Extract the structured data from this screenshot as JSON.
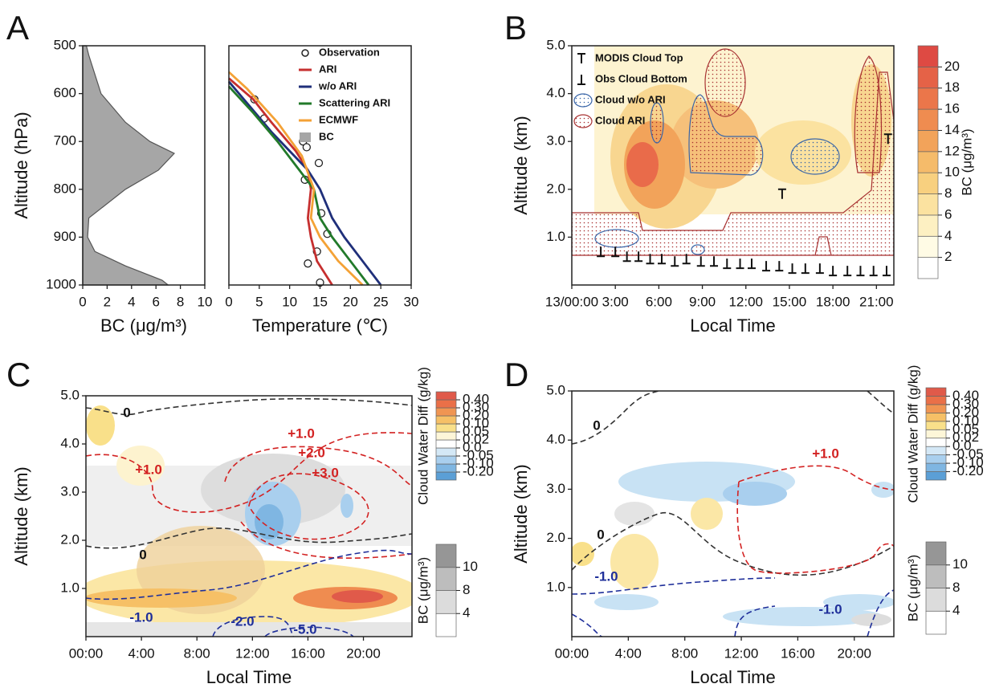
{
  "chart_data": [
    {
      "type": "area",
      "title": "A",
      "xlabel": "BC  (μg/m³)",
      "ylabel": "Altitude (hPa)",
      "xlim": [
        0,
        10
      ],
      "xticks": [
        0,
        2,
        4,
        6,
        8,
        10
      ],
      "ylim": [
        1000,
        500
      ],
      "yticks": [
        500,
        600,
        700,
        800,
        900,
        1000
      ],
      "series": [
        {
          "name": "BC",
          "color": "#a6a6a6",
          "y": [
            500,
            520,
            600,
            660,
            700,
            725,
            760,
            800,
            860,
            900,
            930,
            960,
            990,
            1000
          ],
          "values": [
            0.3,
            0.5,
            1.5,
            3.5,
            5.5,
            7.5,
            6.2,
            3.5,
            0.5,
            0.4,
            1,
            3.5,
            6.5,
            7
          ]
        }
      ]
    },
    {
      "type": "line",
      "xlabel": "Temperature (℃)",
      "xlim": [
        0,
        30
      ],
      "xticks": [
        0,
        5,
        10,
        15,
        20,
        25,
        30
      ],
      "ylim": [
        1000,
        500
      ],
      "series": [
        {
          "name": "Observation",
          "marker": "o",
          "color": "#222222",
          "y": [
            612,
            652,
            700,
            712,
            745,
            780,
            850,
            893,
            930,
            955,
            995
          ],
          "values": [
            4.2,
            5.8,
            12.2,
            12.8,
            14.8,
            12.5,
            15.2,
            16.2,
            14.5,
            13,
            15
          ]
        },
        {
          "name": "ARI",
          "color": "#c62f2f",
          "y": [
            568,
            612,
            660,
            720,
            760,
            800,
            860,
            900,
            950,
            1000
          ],
          "values": [
            0,
            4,
            7,
            11,
            13,
            13.5,
            13,
            13.5,
            14.5,
            17
          ]
        },
        {
          "name": "w/o ARI",
          "color": "#1f2f7a",
          "y": [
            575,
            620,
            680,
            720,
            760,
            800,
            860,
            900,
            950,
            1000
          ],
          "values": [
            0,
            3,
            7,
            10,
            13,
            15,
            17,
            19,
            22,
            25
          ]
        },
        {
          "name": "Scattering ARI",
          "color": "#227a2a",
          "y": [
            585,
            640,
            700,
            750,
            800,
            860,
            900,
            950,
            1000
          ],
          "values": [
            0,
            4,
            8,
            11,
            14,
            15,
            17,
            20,
            23
          ]
        },
        {
          "name": "ECMWF",
          "color": "#f4a236",
          "y": [
            555,
            590,
            660,
            730,
            800,
            860,
            900,
            950,
            1000
          ],
          "values": [
            0,
            3,
            8,
            12,
            14,
            13.5,
            15,
            18,
            22
          ]
        }
      ]
    },
    {
      "type": "contour",
      "title": "B",
      "xlabel": "Local Time",
      "ylabel": "Altitude (km)",
      "xlim": [
        0,
        22.2
      ],
      "xticks": [
        {
          "value": 0,
          "label": "13/00:00"
        },
        {
          "value": 3,
          "label": "3:00"
        },
        {
          "value": 6,
          "label": "6:00"
        },
        {
          "value": 9,
          "label": "9:00"
        },
        {
          "value": 12,
          "label": "12:00"
        },
        {
          "value": 15,
          "label": "15:00"
        },
        {
          "value": 18,
          "label": "18:00"
        },
        {
          "value": 21,
          "label": "21:00"
        }
      ],
      "ylim": [
        0,
        5
      ],
      "yticks": [
        {
          "value": 1,
          "label": "1.0"
        },
        {
          "value": 2,
          "label": "2.0"
        },
        {
          "value": 3,
          "label": "3.0"
        },
        {
          "value": 4,
          "label": "4.0"
        },
        {
          "value": 5,
          "label": "5.0"
        }
      ],
      "series": [
        {
          "name": "MODIS Cloud Top",
          "marker": "top",
          "color": "#111111",
          "x": [
            14.5,
            21.8
          ],
          "values": [
            1.9,
            3.05
          ]
        },
        {
          "name": "Obs Cloud Bottom",
          "marker": "bottom",
          "color": "#111111",
          "x": [
            2,
            3,
            3.8,
            4.6,
            5.4,
            6.2,
            7.1,
            7.9,
            8.9,
            9.8,
            10.7,
            11.6,
            12.4,
            13.4,
            14.3,
            15.2,
            16.1,
            17.1,
            18,
            19,
            19.9,
            20.8,
            21.7
          ],
          "values": [
            0.7,
            0.7,
            0.6,
            0.6,
            0.55,
            0.55,
            0.5,
            0.55,
            0.5,
            0.5,
            0.45,
            0.45,
            0.45,
            0.4,
            0.4,
            0.35,
            0.35,
            0.35,
            0.3,
            0.3,
            0.3,
            0.3,
            0.3
          ]
        },
        {
          "name": "Cloud w/o ARI",
          "marker": "region",
          "color": "#3a66a8"
        },
        {
          "name": "Cloud ARI",
          "marker": "region",
          "color": "#a83232"
        }
      ],
      "colorbars": [
        {
          "label": "BC  (μg/m³)",
          "ticks": [
            2,
            4,
            6,
            8,
            10,
            12,
            14,
            16,
            18,
            20
          ],
          "colors": [
            "#ffffff",
            "#fffbe5",
            "#fdf0c2",
            "#fbe2a0",
            "#f8d07f",
            "#f5bb6a",
            "#f2a35a",
            "#ef8c50",
            "#eb764a",
            "#e56247",
            "#de4a43"
          ]
        }
      ]
    },
    {
      "type": "contour",
      "title": "C",
      "xlabel": "Local Time",
      "ylabel": "Altitude (km)",
      "xlim": [
        0,
        23.5
      ],
      "xticks": [
        {
          "value": 0,
          "label": "00:00"
        },
        {
          "value": 4,
          "label": "4:00"
        },
        {
          "value": 8,
          "label": "8:00"
        },
        {
          "value": 12,
          "label": "12:00"
        },
        {
          "value": 16,
          "label": "16:00"
        },
        {
          "value": 20,
          "label": "20:00"
        }
      ],
      "ylim": [
        0,
        5
      ],
      "yticks": [
        {
          "value": 1,
          "label": "1.0"
        },
        {
          "value": 2,
          "label": "2.0"
        },
        {
          "value": 3,
          "label": "3.0"
        },
        {
          "value": 4,
          "label": "4.0"
        },
        {
          "value": 5,
          "label": "5.0"
        }
      ],
      "contour_labels": [
        {
          "text": "0",
          "color": "#111111"
        },
        {
          "text": "+1.0",
          "color": "#d32222"
        },
        {
          "text": "+2.0",
          "color": "#d32222"
        },
        {
          "text": "+3.0",
          "color": "#d32222"
        },
        {
          "text": "+1.0",
          "color": "#d32222"
        },
        {
          "text": "0",
          "color": "#111111"
        },
        {
          "text": "-1.0",
          "color": "#1f2f9a"
        },
        {
          "text": "-2.0",
          "color": "#1f2f9a"
        },
        {
          "text": "-5.0",
          "color": "#1f2f9a"
        }
      ],
      "colorbars": [
        {
          "label": "Cloud Water Diff (g/kg)",
          "ticks": [
            {
              "value": -0.2,
              "label": "-0.20"
            },
            {
              "value": -0.1,
              "label": "-0.10"
            },
            -0.05,
            {
              "value": 0,
              "label": "0.0"
            },
            0.02,
            0.05,
            {
              "value": 0.1,
              "label": "0.10"
            },
            {
              "value": 0.2,
              "label": "0.20"
            },
            {
              "value": 0.3,
              "label": "0.30"
            },
            {
              "value": 0.4,
              "label": "0.40"
            }
          ],
          "colors": [
            "#5b9fd6",
            "#7fb6e2",
            "#a9cfee",
            "#d4e8f6",
            "#ffffff",
            "#fdf6d8",
            "#f9e08a",
            "#f6c066",
            "#f09552",
            "#ea7048",
            "#e05a4a"
          ]
        },
        {
          "label": "BC  (μg/m³)",
          "ticks": [
            4,
            8,
            10
          ],
          "colors": [
            "#ffffff",
            "#dcdcdc",
            "#bdbdbd",
            "#969696"
          ]
        }
      ]
    },
    {
      "type": "contour",
      "title": "D",
      "xlabel": "Local Time",
      "ylabel": "Altitude (km)",
      "xlim": [
        0,
        22.8
      ],
      "xticks": [
        {
          "value": 0,
          "label": "00:00"
        },
        {
          "value": 4,
          "label": "4:00"
        },
        {
          "value": 8,
          "label": "8:00"
        },
        {
          "value": 12,
          "label": "12:00"
        },
        {
          "value": 16,
          "label": "16:00"
        },
        {
          "value": 20,
          "label": "20:00"
        }
      ],
      "ylim": [
        0,
        5
      ],
      "yticks": [
        {
          "value": 1,
          "label": "1.0"
        },
        {
          "value": 2,
          "label": "2.0"
        },
        {
          "value": 3,
          "label": "3.0"
        },
        {
          "value": 4,
          "label": "4.0"
        },
        {
          "value": 5,
          "label": "5.0"
        }
      ],
      "contour_labels": [
        {
          "text": "0",
          "color": "#111111"
        },
        {
          "text": "+1.0",
          "color": "#d32222"
        },
        {
          "text": "0",
          "color": "#111111"
        },
        {
          "text": "-1.0",
          "color": "#1f2f9a"
        },
        {
          "text": "-1.0",
          "color": "#1f2f9a"
        }
      ],
      "colorbars": [
        {
          "label": "Cloud Water Diff (g/kg)",
          "ticks": [
            {
              "value": -0.2,
              "label": "-0.20"
            },
            {
              "value": -0.1,
              "label": "-0.10"
            },
            -0.05,
            {
              "value": 0,
              "label": "0.0"
            },
            0.02,
            0.05,
            {
              "value": 0.1,
              "label": "0.10"
            },
            {
              "value": 0.2,
              "label": "0.20"
            },
            {
              "value": 0.3,
              "label": "0.30"
            },
            {
              "value": 0.4,
              "label": "0.40"
            }
          ],
          "colors": [
            "#5b9fd6",
            "#7fb6e2",
            "#a9cfee",
            "#d4e8f6",
            "#ffffff",
            "#fdf6d8",
            "#f9e08a",
            "#f6c066",
            "#f09552",
            "#ea7048",
            "#e05a4a"
          ]
        },
        {
          "label": "BC  (μg/m³)",
          "ticks": [
            4,
            8,
            10
          ],
          "colors": [
            "#ffffff",
            "#dcdcdc",
            "#bdbdbd",
            "#969696"
          ]
        }
      ]
    }
  ]
}
